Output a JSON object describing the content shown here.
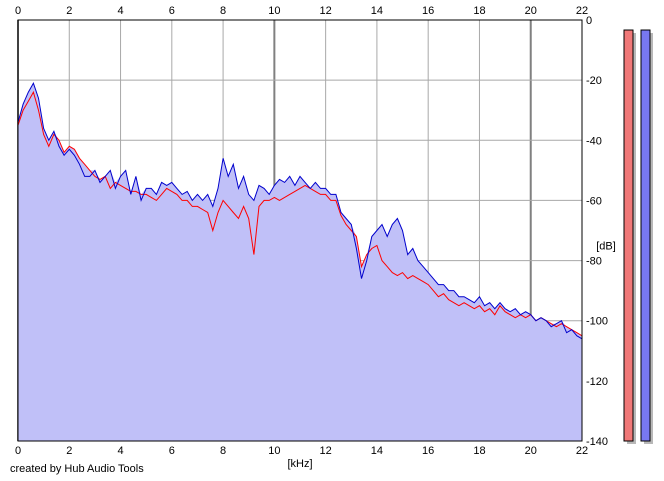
{
  "chart_data": {
    "type": "area",
    "title": "",
    "xlabel": "[kHz]",
    "ylabel": "[dB]",
    "x_ticks": [
      0,
      2,
      4,
      6,
      8,
      10,
      12,
      14,
      16,
      18,
      20,
      22
    ],
    "y_ticks": [
      0,
      -20,
      -40,
      -60,
      -80,
      -100,
      -120,
      -140
    ],
    "xlim": [
      0,
      22
    ],
    "ylim": [
      -140,
      0
    ],
    "grid": true,
    "series": [
      {
        "color": "#ff0000",
        "x": [
          0,
          0.2,
          0.4,
          0.6,
          0.8,
          1,
          1.2,
          1.4,
          1.6,
          1.8,
          2,
          2.2,
          2.4,
          2.6,
          2.8,
          3,
          3.2,
          3.4,
          3.6,
          3.8,
          4,
          4.2,
          4.4,
          4.6,
          4.8,
          5,
          5.2,
          5.4,
          5.6,
          5.8,
          6,
          6.2,
          6.4,
          6.6,
          6.8,
          7,
          7.2,
          7.4,
          7.6,
          7.8,
          8,
          8.2,
          8.4,
          8.6,
          8.8,
          9,
          9.2,
          9.4,
          9.6,
          9.8,
          10,
          10.2,
          10.4,
          10.6,
          10.8,
          11,
          11.2,
          11.4,
          11.6,
          11.8,
          12,
          12.2,
          12.4,
          12.6,
          12.8,
          13,
          13.2,
          13.4,
          13.6,
          13.8,
          14,
          14.2,
          14.4,
          14.6,
          14.8,
          15,
          15.2,
          15.4,
          15.6,
          15.8,
          16,
          16.2,
          16.4,
          16.6,
          16.8,
          17,
          17.2,
          17.4,
          17.6,
          17.8,
          18,
          18.2,
          18.4,
          18.6,
          18.8,
          19,
          19.2,
          19.4,
          19.6,
          19.8,
          20,
          20.2,
          20.4,
          20.6,
          20.8,
          21,
          21.2,
          21.4,
          21.6,
          21.8,
          22
        ],
        "values": [
          -35,
          -30,
          -27,
          -24,
          -30,
          -38,
          -42,
          -38,
          -40,
          -44,
          -42,
          -43,
          -46,
          -48,
          -50,
          -52,
          -53,
          -52,
          -56,
          -54,
          -55,
          -56,
          -57,
          -57,
          -58,
          -58,
          -59,
          -60,
          -58,
          -56,
          -57,
          -58,
          -60,
          -60,
          -62,
          -62,
          -63,
          -64,
          -70,
          -64,
          -60,
          -62,
          -64,
          -66,
          -62,
          -66,
          -78,
          -62,
          -60,
          -60,
          -59,
          -60,
          -59,
          -58,
          -57,
          -56,
          -55,
          -56,
          -57,
          -58,
          -58,
          -60,
          -60,
          -65,
          -68,
          -70,
          -72,
          -82,
          -78,
          -76,
          -75,
          -80,
          -82,
          -84,
          -85,
          -84,
          -86,
          -85,
          -86,
          -87,
          -88,
          -90,
          -92,
          -91,
          -93,
          -94,
          -95,
          -94,
          -95,
          -96,
          -95,
          -97,
          -96,
          -98,
          -95,
          -97,
          -98,
          -99,
          -98,
          -99,
          -98,
          -100,
          -99,
          -100,
          -101,
          -102,
          -101,
          -102,
          -103,
          -104,
          -105
        ]
      },
      {
        "color": "#0000cc",
        "x": [
          0,
          0.2,
          0.4,
          0.6,
          0.8,
          1,
          1.2,
          1.4,
          1.6,
          1.8,
          2,
          2.2,
          2.4,
          2.6,
          2.8,
          3,
          3.2,
          3.4,
          3.6,
          3.8,
          4,
          4.2,
          4.4,
          4.6,
          4.8,
          5,
          5.2,
          5.4,
          5.6,
          5.8,
          6,
          6.2,
          6.4,
          6.6,
          6.8,
          7,
          7.2,
          7.4,
          7.6,
          7.8,
          8,
          8.2,
          8.4,
          8.6,
          8.8,
          9,
          9.2,
          9.4,
          9.6,
          9.8,
          10,
          10.2,
          10.4,
          10.6,
          10.8,
          11,
          11.2,
          11.4,
          11.6,
          11.8,
          12,
          12.2,
          12.4,
          12.6,
          12.8,
          13,
          13.2,
          13.4,
          13.6,
          13.8,
          14,
          14.2,
          14.4,
          14.6,
          14.8,
          15,
          15.2,
          15.4,
          15.6,
          15.8,
          16,
          16.2,
          16.4,
          16.6,
          16.8,
          17,
          17.2,
          17.4,
          17.6,
          17.8,
          18,
          18.2,
          18.4,
          18.6,
          18.8,
          19,
          19.2,
          19.4,
          19.6,
          19.8,
          20,
          20.2,
          20.4,
          20.6,
          20.8,
          21,
          21.2,
          21.4,
          21.6,
          21.8,
          22
        ],
        "values": [
          -34,
          -28,
          -24,
          -21,
          -26,
          -36,
          -40,
          -37,
          -42,
          -45,
          -43,
          -45,
          -48,
          -52,
          -52,
          -50,
          -54,
          -52,
          -50,
          -56,
          -52,
          -50,
          -58,
          -52,
          -60,
          -56,
          -56,
          -58,
          -54,
          -55,
          -54,
          -56,
          -58,
          -57,
          -60,
          -58,
          -60,
          -58,
          -62,
          -56,
          -46,
          -52,
          -48,
          -56,
          -52,
          -58,
          -60,
          -55,
          -56,
          -58,
          -55,
          -53,
          -54,
          -52,
          -55,
          -52,
          -54,
          -56,
          -54,
          -56,
          -56,
          -58,
          -58,
          -64,
          -66,
          -68,
          -76,
          -86,
          -80,
          -72,
          -70,
          -68,
          -72,
          -68,
          -66,
          -70,
          -78,
          -76,
          -80,
          -82,
          -84,
          -86,
          -88,
          -88,
          -90,
          -90,
          -92,
          -92,
          -93,
          -94,
          -92,
          -95,
          -94,
          -96,
          -94,
          -96,
          -97,
          -96,
          -98,
          -97,
          -98,
          -100,
          -99,
          -100,
          -102,
          -101,
          -100,
          -104,
          -103,
          -105,
          -106
        ]
      }
    ],
    "level_meters": [
      {
        "color": "#f07878",
        "level_db": -2
      },
      {
        "color": "#7878f0",
        "level_db": -2
      }
    ]
  },
  "footer": {
    "credit": "created by Hub Audio Tools"
  }
}
